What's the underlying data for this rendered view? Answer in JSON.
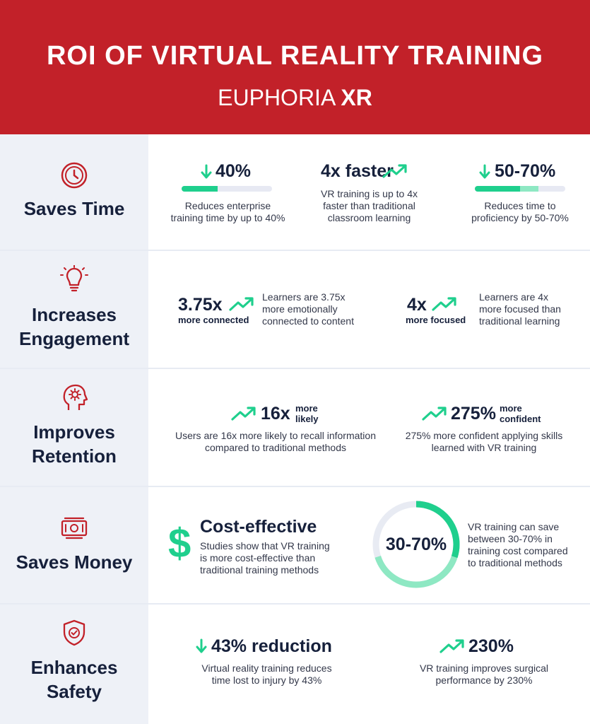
{
  "header": {
    "title": "ROI OF VIRTUAL REALITY TRAINING",
    "logo_part1": "EUPHORIA",
    "logo_part2": "XR"
  },
  "colors": {
    "brand_red": "#c22129",
    "accent_green": "#1fcf8d",
    "light_green": "#8ee8c3",
    "navy": "#16203b"
  },
  "sections": {
    "time": {
      "label": "Saves Time",
      "icon": "clock-icon",
      "s1": {
        "stat": "40%",
        "desc": "Reduces enterprise training time by up to 40%",
        "progress": 0.4
      },
      "s2": {
        "stat": "4x faster",
        "desc": "VR training is up to 4x faster than traditional classroom learning"
      },
      "s3": {
        "stat": "50-70%",
        "desc": "Reduces time to proficiency by 50-70%",
        "progress_min": 0.5,
        "progress_max": 0.7
      }
    },
    "engagement": {
      "label1": "Increases",
      "label2": "Engagement",
      "icon": "lightbulb-icon",
      "s1": {
        "stat": "3.75x",
        "sub": "more connected",
        "desc": "Learners are 3.75x more emotionally connected to content"
      },
      "s2": {
        "stat": "4x",
        "sub": "more focused",
        "desc": "Learners are 4x more focused than traditional learning"
      }
    },
    "retention": {
      "label1": "Improves",
      "label2": "Retention",
      "icon": "brain-gear-icon",
      "s1": {
        "stat": "16x",
        "sub1": "more",
        "sub2": "likely",
        "desc": "Users are 16x more likely to recall information compared to traditional methods"
      },
      "s2": {
        "stat": "275%",
        "sub1": "more",
        "sub2": "confident",
        "desc": "275% more confident applying skills learned with VR training"
      }
    },
    "money": {
      "label": "Saves Money",
      "icon": "money-icon",
      "s1": {
        "symbol": "$",
        "stat": "Cost-effective",
        "desc": "Studies show that VR training is more cost-effective than traditional training methods"
      },
      "s2": {
        "stat": "30-70%",
        "desc": "VR training can save between 30-70% in training cost compared to traditional methods",
        "progress_min": 0.3,
        "progress_max": 0.7
      }
    },
    "safety": {
      "label1": "Enhances",
      "label2": "Safety",
      "icon": "shield-check-icon",
      "s1": {
        "stat": "43% reduction",
        "desc": "Virtual reality training reduces time lost to injury by 43%"
      },
      "s2": {
        "stat": "230%",
        "desc": "VR training improves surgical performance by 230%"
      }
    }
  }
}
